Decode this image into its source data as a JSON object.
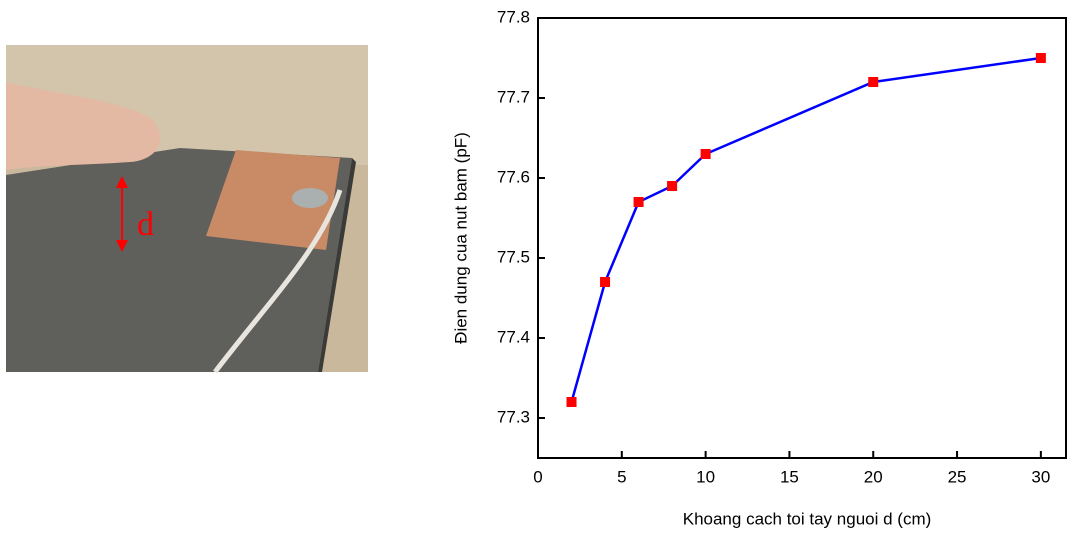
{
  "photo": {
    "label": "d"
  },
  "chart_data": {
    "type": "line",
    "x_label": "Khoang cach toi tay nguoi d (cm)",
    "y_label": "Đien dung cua nut bam (pF)",
    "x": [
      2,
      4,
      6,
      8,
      10,
      20,
      30
    ],
    "series": [
      {
        "values": [
          77.32,
          77.47,
          77.57,
          77.59,
          77.63,
          77.72,
          77.75
        ],
        "color": "#0000ff",
        "marker_color": "#ff0000"
      }
    ],
    "xlim": [
      0,
      31.5
    ],
    "ylim": [
      77.25,
      77.8
    ],
    "xticks": [
      0,
      5,
      10,
      15,
      20,
      25,
      30
    ],
    "yticks": [
      77.3,
      77.4,
      77.5,
      77.6,
      77.7,
      77.8
    ]
  }
}
